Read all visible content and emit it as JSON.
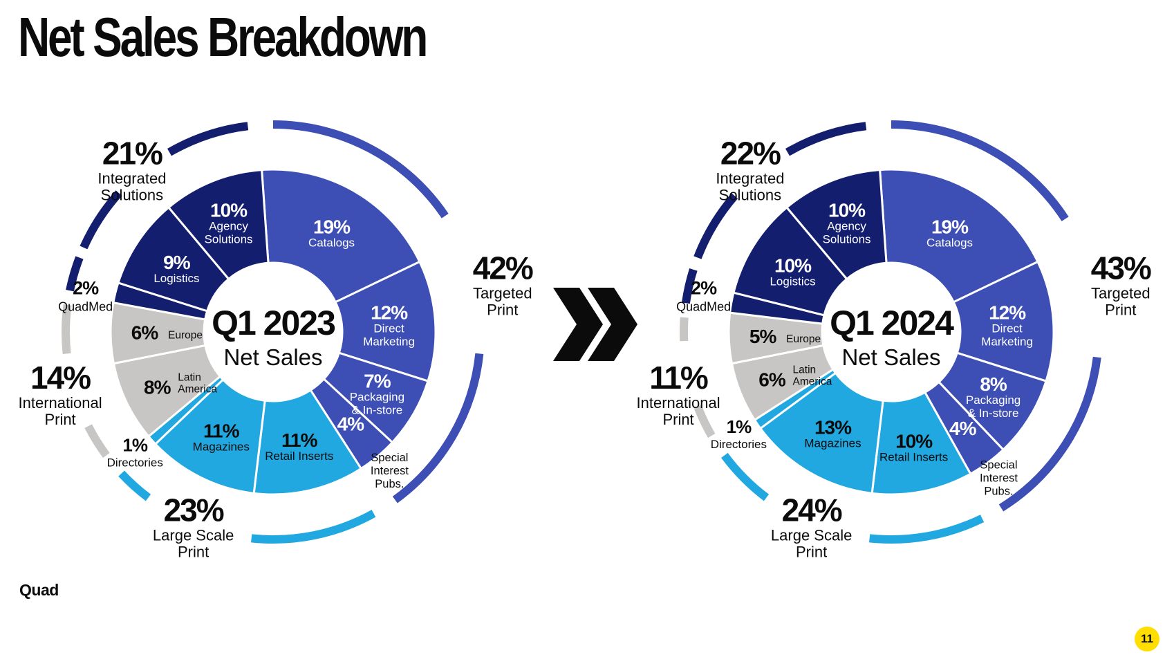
{
  "title": "Net Sales Breakdown",
  "arrow_icon": "double-chevron-right",
  "footer": {
    "brand": "Quad",
    "page_number": "11"
  },
  "colors": {
    "targeted-print": "#3D4EB4",
    "large-scale-print": "#21A8E1",
    "international-print": "#C8C6C4",
    "quadmed": "#131F6E",
    "integrated-solutions": "#131F6E",
    "ink_dark": "#0b0b0b",
    "ink_light": "#ffffff",
    "badge_yellow": "#FFDE00",
    "arrow_black": "#0b0b0b"
  },
  "chart_data": [
    {
      "type": "donut",
      "center_title": "Q1 2023",
      "center_subtitle": "Net Sales",
      "segments": [
        {
          "id": "catalogs",
          "label": "Catalogs",
          "lines": [
            "Catalogs"
          ],
          "pct": 19,
          "group": "targeted-print",
          "ink": "light"
        },
        {
          "id": "direct-marketing",
          "label": "Direct Marketing",
          "lines": [
            "Direct",
            "Marketing"
          ],
          "pct": 12,
          "group": "targeted-print",
          "ink": "light"
        },
        {
          "id": "packaging",
          "label": "Packaging & In-store",
          "lines": [
            "Packaging",
            "& In-store"
          ],
          "pct": 7,
          "group": "targeted-print",
          "ink": "light"
        },
        {
          "id": "special-interest-pubs",
          "label": "Special Interest Pubs.",
          "lines": [
            "Special",
            "Interest",
            "Pubs."
          ],
          "pct": 4,
          "group": "targeted-print",
          "ink": "light"
        },
        {
          "id": "retail-inserts",
          "label": "Retail Inserts",
          "lines": [
            "Retail Inserts"
          ],
          "pct": 11,
          "group": "large-scale-print",
          "ink": "dark"
        },
        {
          "id": "magazines",
          "label": "Magazines",
          "lines": [
            "Magazines"
          ],
          "pct": 11,
          "group": "large-scale-print",
          "ink": "dark"
        },
        {
          "id": "directories",
          "label": "Directories",
          "lines": [
            "Directories"
          ],
          "pct": 1,
          "group": "large-scale-print",
          "ink": "dark"
        },
        {
          "id": "latin-america",
          "label": "Latin America",
          "lines": [
            "Latin",
            "America"
          ],
          "pct": 8,
          "group": "international-print",
          "ink": "dark"
        },
        {
          "id": "europe",
          "label": "Europe",
          "lines": [
            "Europe"
          ],
          "pct": 6,
          "group": "international-print",
          "ink": "dark"
        },
        {
          "id": "quadmed",
          "label": "QuadMed",
          "lines": [],
          "pct": 2,
          "group": "quadmed",
          "ink": "light"
        },
        {
          "id": "logistics",
          "label": "Logistics",
          "lines": [
            "Logistics"
          ],
          "pct": 9,
          "group": "integrated-solutions",
          "ink": "light"
        },
        {
          "id": "agency-solutions",
          "label": "Agency Solutions",
          "lines": [
            "Agency",
            "Solutions"
          ],
          "pct": 10,
          "group": "integrated-solutions",
          "ink": "light"
        }
      ],
      "groups": [
        {
          "id": "targeted-print",
          "label": "Targeted Print",
          "lines": [
            "Targeted",
            "Print"
          ],
          "pct": 42,
          "arc_spans": [
            [
              0,
              56
            ],
            [
              96,
              144
            ]
          ]
        },
        {
          "id": "large-scale-print",
          "label": "Large Scale Print",
          "lines": [
            "Large Scale",
            "Print"
          ],
          "pct": 23,
          "arc_spans": [
            [
              151,
              186
            ],
            [
              217,
              227
            ]
          ]
        },
        {
          "id": "international-print",
          "label": "International Print",
          "lines": [
            "International",
            "Print"
          ],
          "pct": 14,
          "arc_spans": [
            [
              233.5,
              243
            ],
            [
              264,
              277.5
            ]
          ]
        },
        {
          "id": "quadmed",
          "label": "QuadMed",
          "lines": [
            "QuadMed"
          ],
          "pct": 2,
          "arc_spans": [
            [
              281.5,
              291
            ]
          ]
        },
        {
          "id": "integrated-solutions",
          "label": "Integrated Solutions",
          "lines": [
            "Integrated",
            "Solutions"
          ],
          "pct": 21,
          "arc_spans": [
            [
              294,
              312
            ],
            [
              330,
              353
            ]
          ]
        }
      ]
    },
    {
      "type": "donut",
      "center_title": "Q1 2024",
      "center_subtitle": "Net Sales",
      "segments": [
        {
          "id": "catalogs",
          "label": "Catalogs",
          "lines": [
            "Catalogs"
          ],
          "pct": 19,
          "group": "targeted-print",
          "ink": "light"
        },
        {
          "id": "direct-marketing",
          "label": "Direct Marketing",
          "lines": [
            "Direct",
            "Marketing"
          ],
          "pct": 12,
          "group": "targeted-print",
          "ink": "light"
        },
        {
          "id": "packaging",
          "label": "Packaging & In-store",
          "lines": [
            "Packaging",
            "& In-store"
          ],
          "pct": 8,
          "group": "targeted-print",
          "ink": "light"
        },
        {
          "id": "special-interest-pubs",
          "label": "Special Interest Pubs.",
          "lines": [
            "Special",
            "Interest",
            "Pubs."
          ],
          "pct": 4,
          "group": "targeted-print",
          "ink": "light"
        },
        {
          "id": "retail-inserts",
          "label": "Retail Inserts",
          "lines": [
            "Retail Inserts"
          ],
          "pct": 10,
          "group": "large-scale-print",
          "ink": "dark"
        },
        {
          "id": "magazines",
          "label": "Magazines",
          "lines": [
            "Magazines"
          ],
          "pct": 13,
          "group": "large-scale-print",
          "ink": "dark"
        },
        {
          "id": "directories",
          "label": "Directories",
          "lines": [
            "Directories"
          ],
          "pct": 1,
          "group": "large-scale-print",
          "ink": "dark"
        },
        {
          "id": "latin-america",
          "label": "Latin America",
          "lines": [
            "Latin",
            "America"
          ],
          "pct": 6,
          "group": "international-print",
          "ink": "dark"
        },
        {
          "id": "europe",
          "label": "Europe",
          "lines": [
            "Europe"
          ],
          "pct": 5,
          "group": "international-print",
          "ink": "dark"
        },
        {
          "id": "quadmed",
          "label": "QuadMed",
          "lines": [],
          "pct": 2,
          "group": "quadmed",
          "ink": "light"
        },
        {
          "id": "logistics",
          "label": "Logistics",
          "lines": [
            "Logistics"
          ],
          "pct": 10,
          "group": "integrated-solutions",
          "ink": "light"
        },
        {
          "id": "agency-solutions",
          "label": "Agency Solutions",
          "lines": [
            "Agency",
            "Solutions"
          ],
          "pct": 10,
          "group": "integrated-solutions",
          "ink": "light"
        }
      ],
      "groups": [
        {
          "id": "targeted-print",
          "label": "Targeted Print",
          "lines": [
            "Targeted",
            "Print"
          ],
          "pct": 43,
          "arc_spans": [
            [
              0,
              57
            ],
            [
              97,
              148
            ]
          ]
        },
        {
          "id": "large-scale-print",
          "label": "Large Scale Print",
          "lines": [
            "Large Scale",
            "Print"
          ],
          "pct": 24,
          "arc_spans": [
            [
              154,
              186
            ],
            [
              217,
              233.5
            ]
          ]
        },
        {
          "id": "international-print",
          "label": "International Print",
          "lines": [
            "International",
            "Print"
          ],
          "pct": 11,
          "arc_spans": [
            [
              240,
              249
            ],
            [
              267.5,
              274
            ]
          ]
        },
        {
          "id": "quadmed",
          "label": "QuadMed",
          "lines": [
            "QuadMed"
          ],
          "pct": 2,
          "arc_spans": [
            [
              278,
              287.5
            ]
          ]
        },
        {
          "id": "integrated-solutions",
          "label": "Integrated Solutions",
          "lines": [
            "Integrated",
            "Solutions"
          ],
          "pct": 22,
          "arc_spans": [
            [
              291,
              311
            ],
            [
              330,
              353
            ]
          ]
        }
      ]
    }
  ]
}
